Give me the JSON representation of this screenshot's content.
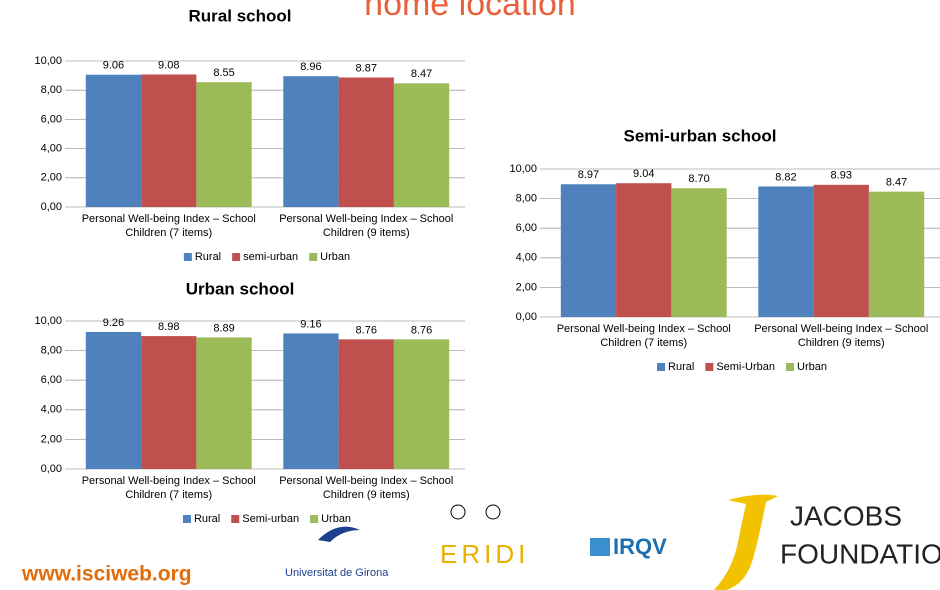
{
  "title": "home location",
  "chart_data": [
    {
      "type": "bar",
      "title": "Rural school",
      "categories": [
        "Personal Well-being Index – School Children (7 items)",
        "Personal Well-being Index – School Children (9 items)"
      ],
      "series": [
        {
          "name": "Rural",
          "color": "#4f81bd",
          "values": [
            9.06,
            8.96
          ],
          "value_labels": [
            "9.06",
            "8.96"
          ]
        },
        {
          "name": "semi-urban",
          "color": "#c0504d",
          "values": [
            9.08,
            8.87
          ],
          "value_labels": [
            "9.08",
            "8.87"
          ]
        },
        {
          "name": "Urban",
          "color": "#9bbb59",
          "values": [
            8.55,
            8.47
          ],
          "value_labels": [
            "8.55",
            "8.47"
          ]
        }
      ],
      "ylim": [
        0,
        10
      ],
      "yticks": [
        {
          "value": 0,
          "label": "0,00"
        },
        {
          "value": 2,
          "label": "2,00"
        },
        {
          "value": 4,
          "label": "4,00"
        },
        {
          "value": 6,
          "label": "6,00"
        },
        {
          "value": 8,
          "label": "8,00"
        },
        {
          "value": 10,
          "label": "10,00"
        }
      ],
      "grid": true,
      "legend": "bottom"
    },
    {
      "type": "bar",
      "title": "Semi-urban school",
      "categories": [
        "Personal Well-being Index – School Children (7 items)",
        "Personal Well-being Index – School Children (9 items)"
      ],
      "series": [
        {
          "name": "Rural",
          "color": "#4f81bd",
          "values": [
            8.97,
            8.82
          ],
          "value_labels": [
            "8.97",
            "8.82"
          ]
        },
        {
          "name": "Semi-Urban",
          "color": "#c0504d",
          "values": [
            9.04,
            8.93
          ],
          "value_labels": [
            "9.04",
            "8.93"
          ]
        },
        {
          "name": "Urban",
          "color": "#9bbb59",
          "values": [
            8.7,
            8.47
          ],
          "value_labels": [
            "8.70",
            "8.47"
          ]
        }
      ],
      "ylim": [
        0,
        10
      ],
      "yticks": [
        {
          "value": 0,
          "label": "0,00"
        },
        {
          "value": 2,
          "label": "2,00"
        },
        {
          "value": 4,
          "label": "4,00"
        },
        {
          "value": 6,
          "label": "6,00"
        },
        {
          "value": 8,
          "label": "8,00"
        },
        {
          "value": 10,
          "label": "10,00"
        }
      ],
      "grid": true,
      "legend": "bottom"
    },
    {
      "type": "bar",
      "title": "Urban school",
      "categories": [
        "Personal Well-being Index – School Children (7 items)",
        "Personal Well-being Index – School Children (9 items)"
      ],
      "series": [
        {
          "name": "Rural",
          "color": "#4f81bd",
          "values": [
            9.26,
            9.16
          ],
          "value_labels": [
            "9.26",
            "9.16"
          ]
        },
        {
          "name": "Semi-urban",
          "color": "#c0504d",
          "values": [
            8.98,
            8.76
          ],
          "value_labels": [
            "8.98",
            "8.76"
          ]
        },
        {
          "name": "Urban",
          "color": "#9bbb59",
          "values": [
            8.89,
            8.76
          ],
          "value_labels": [
            "8.89",
            "8.76"
          ]
        }
      ],
      "ylim": [
        0,
        10
      ],
      "yticks": [
        {
          "value": 0,
          "label": "0,00"
        },
        {
          "value": 2,
          "label": "2,00"
        },
        {
          "value": 4,
          "label": "4,00"
        },
        {
          "value": 6,
          "label": "6,00"
        },
        {
          "value": 8,
          "label": "8,00"
        },
        {
          "value": 10,
          "label": "10,00"
        }
      ],
      "grid": true,
      "legend": "bottom"
    }
  ],
  "footer": {
    "url": "www.isciweb.org",
    "logos": [
      "Universitat de Girona",
      "ERIDI",
      "IRQV",
      "JACOBS",
      "FOUNDATION"
    ]
  }
}
